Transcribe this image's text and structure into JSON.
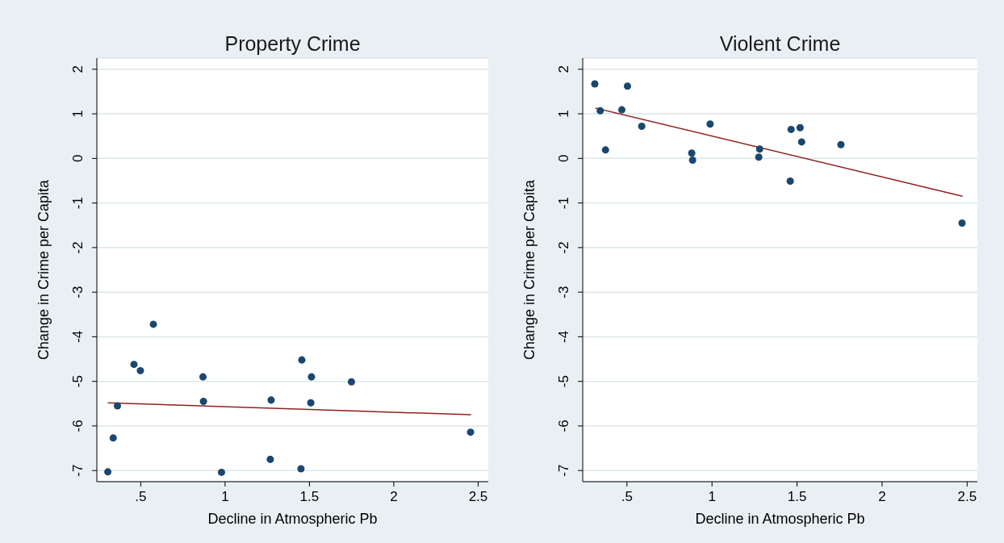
{
  "chart_data": [
    {
      "type": "scatter",
      "title": "Property Crime",
      "xlabel": "Decline in Atmospheric Pb",
      "ylabel": "Change in Crime per Capita",
      "xlim": [
        0.24,
        2.56
      ],
      "ylim": [
        -7.25,
        2.25
      ],
      "xticks": [
        {
          "value": 0.5,
          "label": ".5"
        },
        1,
        1.5,
        2,
        2.5
      ],
      "yticks": [
        -7,
        -6,
        -5,
        -4,
        -3,
        -2,
        -1,
        0,
        1,
        2
      ],
      "grid": "y",
      "series": [
        {
          "marker": "circle",
          "color": "#1a476f",
          "x": [
            0.305,
            0.337,
            0.362,
            0.575,
            0.46,
            0.498,
            0.869,
            0.872,
            0.979,
            1.273,
            1.268,
            1.455,
            1.45,
            1.512,
            1.508,
            1.749,
            2.455
          ],
          "values": [
            -7.03,
            -6.27,
            -5.55,
            -3.72,
            -4.62,
            -4.76,
            -4.9,
            -5.45,
            -7.04,
            -5.42,
            -6.75,
            -4.52,
            -6.96,
            -4.9,
            -5.48,
            -5.01,
            -6.14
          ]
        },
        {
          "type": "line",
          "marker": "none",
          "color": "#902020",
          "x": [
            0.305,
            2.458
          ],
          "values": [
            -5.48,
            -5.75
          ]
        }
      ]
    },
    {
      "type": "scatter",
      "title": "Violent Crime",
      "xlabel": "Decline in Atmospheric Pb",
      "ylabel": "Change in Crime per Capita",
      "xlim": [
        0.24,
        2.56
      ],
      "ylim": [
        -7.25,
        2.25
      ],
      "xticks": [
        {
          "value": 0.5,
          "label": ".5"
        },
        1,
        1.5,
        2,
        2.5
      ],
      "yticks": [
        -7,
        -6,
        -5,
        -4,
        -3,
        -2,
        -1,
        0,
        1,
        2
      ],
      "grid": "y",
      "series": [
        {
          "marker": "circle",
          "color": "#1a476f",
          "x": [
            0.311,
            0.343,
            0.374,
            0.503,
            0.47,
            0.587,
            0.881,
            0.886,
            0.989,
            1.28,
            1.275,
            1.46,
            1.465,
            1.518,
            1.527,
            1.758,
            2.47
          ],
          "values": [
            1.67,
            1.07,
            0.19,
            1.62,
            1.09,
            0.72,
            0.12,
            -0.04,
            0.77,
            0.21,
            0.03,
            -0.51,
            0.65,
            0.69,
            0.37,
            0.31,
            -1.45
          ]
        },
        {
          "type": "line",
          "marker": "none",
          "color": "#902020",
          "x": [
            0.314,
            2.473
          ],
          "values": [
            1.13,
            -0.85
          ]
        }
      ]
    }
  ]
}
